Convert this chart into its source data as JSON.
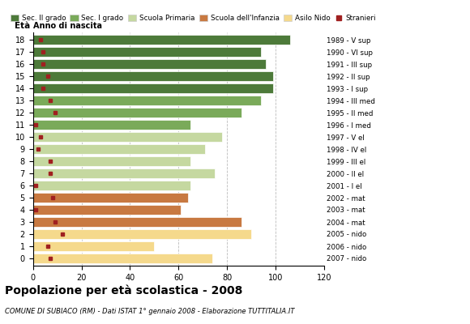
{
  "ages": [
    18,
    17,
    16,
    15,
    14,
    13,
    12,
    11,
    10,
    9,
    8,
    7,
    6,
    5,
    4,
    3,
    2,
    1,
    0
  ],
  "anno_nascita": [
    "1989 - V sup",
    "1990 - VI sup",
    "1991 - III sup",
    "1992 - II sup",
    "1993 - I sup",
    "1994 - III med",
    "1995 - II med",
    "1996 - I med",
    "1997 - V el",
    "1998 - IV el",
    "1999 - III el",
    "2000 - II el",
    "2001 - I el",
    "2002 - mat",
    "2003 - mat",
    "2004 - mat",
    "2005 - nido",
    "2006 - nido",
    "2007 - nido"
  ],
  "bar_values": [
    106,
    94,
    96,
    99,
    99,
    94,
    86,
    65,
    78,
    71,
    65,
    75,
    65,
    64,
    61,
    86,
    90,
    50,
    74
  ],
  "stranieri": [
    3,
    4,
    4,
    6,
    4,
    7,
    9,
    1,
    3,
    2,
    7,
    7,
    1,
    8,
    1,
    9,
    12,
    6,
    7
  ],
  "bar_colors": [
    "#4d7a3a",
    "#4d7a3a",
    "#4d7a3a",
    "#4d7a3a",
    "#4d7a3a",
    "#7aaa5a",
    "#7aaa5a",
    "#7aaa5a",
    "#c5d8a0",
    "#c5d8a0",
    "#c5d8a0",
    "#c5d8a0",
    "#c5d8a0",
    "#c87941",
    "#c87941",
    "#c87941",
    "#f5d98c",
    "#f5d98c",
    "#f5d98c"
  ],
  "legend_labels": [
    "Sec. II grado",
    "Sec. I grado",
    "Scuola Primaria",
    "Scuola dell'Infanzia",
    "Asilo Nido",
    "Stranieri"
  ],
  "legend_colors": [
    "#4d7a3a",
    "#7aaa5a",
    "#c5d8a0",
    "#c87941",
    "#f5d98c",
    "#a02020"
  ],
  "title": "Popolazione per età scolastica - 2008",
  "subtitle": "COMUNE DI SUBIACO (RM) - Dati ISTAT 1° gennaio 2008 - Elaborazione TUTTITALIA.IT",
  "xlabel_eta": "Età",
  "xlabel_anno": "Anno di nascita",
  "xlim": [
    0,
    120
  ],
  "xticks": [
    0,
    20,
    40,
    60,
    80,
    100,
    120
  ],
  "stranieri_color": "#a02020",
  "background_color": "#ffffff",
  "bar_height": 0.75,
  "grid_color": "#aaaaaa"
}
